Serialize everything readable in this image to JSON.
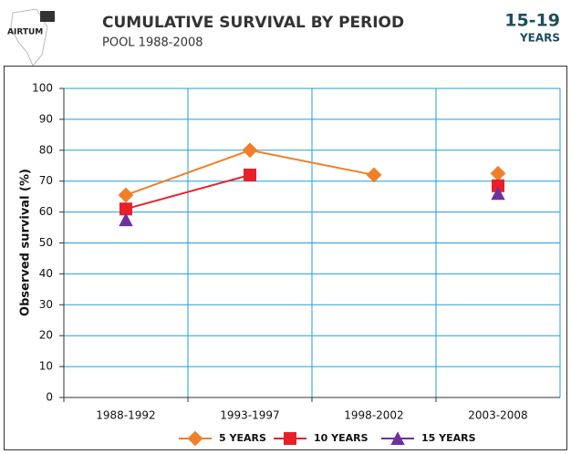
{
  "logo": "AIRTUM",
  "header": {
    "age_group": "15-19",
    "age_unit": "YEARS"
  },
  "chart_data": {
    "type": "line",
    "title": "CUMULATIVE SURVIVAL BY PERIOD",
    "subtitle": "POOL 1988-2008",
    "y_label": "Observed survival (%)",
    "categories": [
      "1988-1992",
      "1993-1997",
      "1998-2002",
      "2003-2008"
    ],
    "series": [
      {
        "name": "5 YEARS",
        "color": "#f07f2a",
        "marker": "diamond",
        "values": [
          65.5,
          80,
          72,
          72.5
        ]
      },
      {
        "name": "10 YEARS",
        "color": "#e8202a",
        "marker": "square",
        "values": [
          61,
          72,
          null,
          68.5
        ]
      },
      {
        "name": "15 YEARS",
        "color": "#7030a0",
        "marker": "triangle",
        "values": [
          57.5,
          null,
          null,
          66
        ]
      }
    ],
    "ylim": [
      0,
      100
    ],
    "yticks": [
      0,
      10,
      20,
      30,
      40,
      50,
      60,
      70,
      80,
      90,
      100
    ],
    "grid": true
  }
}
